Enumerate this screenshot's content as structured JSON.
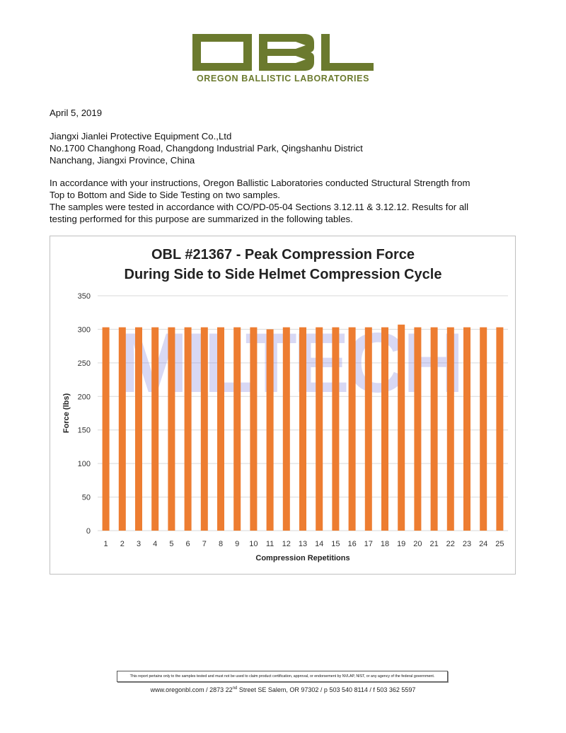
{
  "logo": {
    "letters": "OBL",
    "subtitle": "OREGON BALLISTIC LABORATORIES",
    "color": "#6b7a2e"
  },
  "letter": {
    "date": "April 5, 2019",
    "address": [
      "Jiangxi Jianlei Protective Equipment Co.,Ltd",
      "No.1700 Changhong Road, Changdong Industrial Park, Qingshanhu District",
      "Nanchang, Jiangxi Province, China"
    ],
    "body": [
      "In accordance with your instructions, Oregon Ballistic Laboratories conducted Structural Strength from",
      "Top to Bottom and Side to Side Testing on two samples.",
      "The samples were tested in accordance with CO/PD-05-04 Sections 3.12.11 & 3.12.12. Results for all",
      "testing performed for this purpose are summarized in the following tables."
    ]
  },
  "watermark": "MILTECH",
  "chart_data": {
    "type": "bar",
    "title": [
      "OBL #21367 - Peak Compression Force",
      "During Side to Side Helmet Compression Cycle"
    ],
    "xlabel": "Compression Repetitions",
    "ylabel": "Force (lbs)",
    "ylim": [
      0,
      350
    ],
    "yticks": [
      0,
      50,
      100,
      150,
      200,
      250,
      300,
      350
    ],
    "grid": true,
    "categories": [
      "1",
      "2",
      "3",
      "4",
      "5",
      "6",
      "7",
      "8",
      "9",
      "10",
      "11",
      "12",
      "13",
      "14",
      "15",
      "16",
      "17",
      "18",
      "19",
      "20",
      "21",
      "22",
      "23",
      "24",
      "25"
    ],
    "values": [
      303,
      303,
      303,
      303,
      303,
      303,
      303,
      303,
      303,
      303,
      300,
      303,
      303,
      303,
      303,
      303,
      303,
      303,
      307,
      303,
      303,
      303,
      303,
      303,
      303
    ],
    "bar_color": "#ed7d31"
  },
  "footer": {
    "disclaimer": "This report pertains only to the samples tested and must not be used to claim product certification, approval, or endorsement by NVLAP, NIST, or any agency of the federal government.",
    "address_pre": "www.oregonbl.com / 2873 22",
    "address_sup": "nd",
    "address_post": " Street SE Salem, OR 97302 / p 503 540 8114 / f 503 362 5597"
  }
}
